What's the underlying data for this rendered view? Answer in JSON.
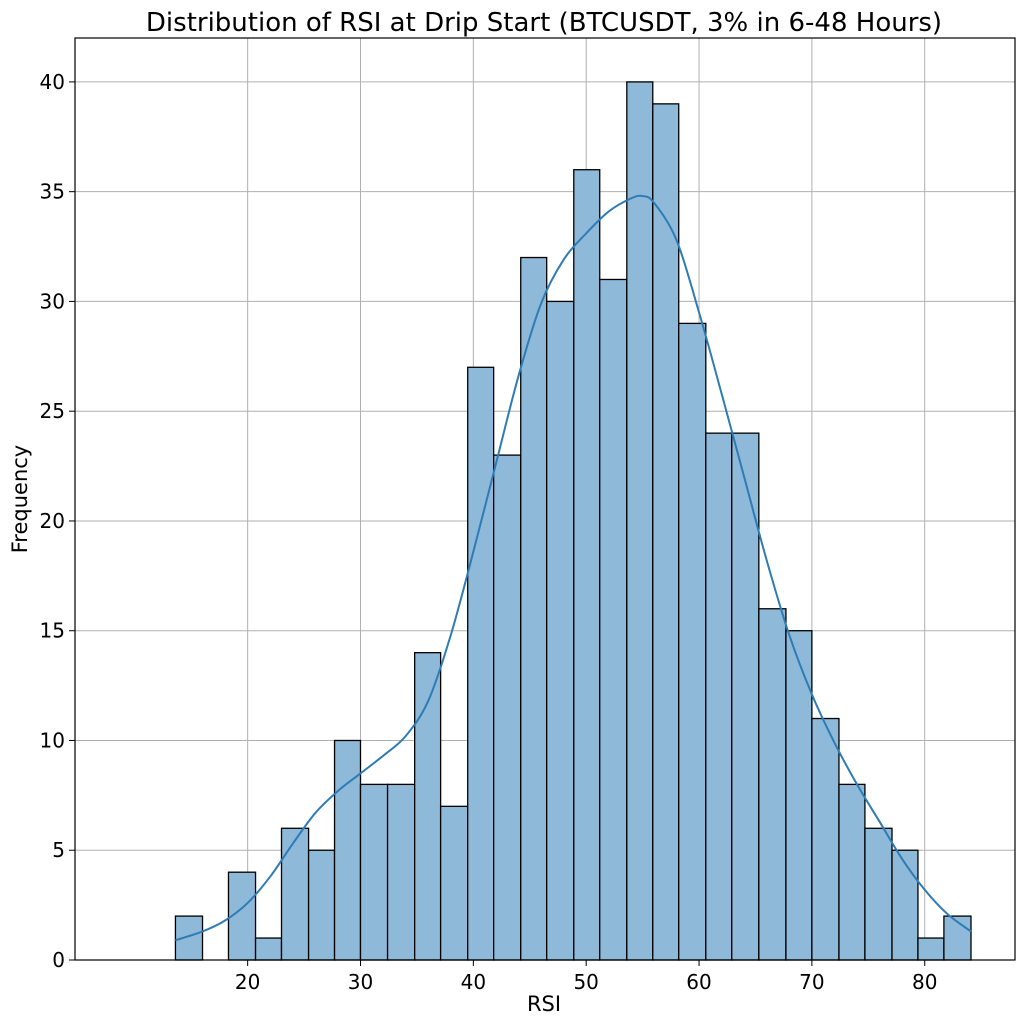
{
  "chart_data": {
    "type": "bar",
    "title": "Distribution of RSI at Drip Start (BTCUSDT, 3% in 6-48 Hours)",
    "xlabel": "RSI",
    "ylabel": "Frequency",
    "xlim": [
      4.7,
      88.0
    ],
    "ylim": [
      0,
      42
    ],
    "x_ticks": [
      20,
      30,
      40,
      50,
      60,
      70,
      80
    ],
    "y_ticks": [
      0,
      5,
      10,
      15,
      20,
      25,
      30,
      35,
      40
    ],
    "grid": true,
    "bins": [
      {
        "start": 13.6,
        "end": 16.0,
        "count": 2
      },
      {
        "start": 16.0,
        "end": 18.3,
        "count": 0
      },
      {
        "start": 18.3,
        "end": 20.7,
        "count": 4
      },
      {
        "start": 20.7,
        "end": 23.0,
        "count": 1
      },
      {
        "start": 23.0,
        "end": 25.4,
        "count": 6
      },
      {
        "start": 25.4,
        "end": 27.7,
        "count": 5
      },
      {
        "start": 27.7,
        "end": 30.0,
        "count": 10
      },
      {
        "start": 30.0,
        "end": 32.4,
        "count": 8
      },
      {
        "start": 32.4,
        "end": 34.8,
        "count": 8
      },
      {
        "start": 34.8,
        "end": 37.1,
        "count": 14
      },
      {
        "start": 37.1,
        "end": 39.5,
        "count": 7
      },
      {
        "start": 39.5,
        "end": 41.8,
        "count": 27
      },
      {
        "start": 41.8,
        "end": 44.2,
        "count": 23
      },
      {
        "start": 44.2,
        "end": 46.5,
        "count": 32
      },
      {
        "start": 46.5,
        "end": 48.9,
        "count": 30
      },
      {
        "start": 48.9,
        "end": 51.2,
        "count": 36
      },
      {
        "start": 51.2,
        "end": 53.6,
        "count": 31
      },
      {
        "start": 53.6,
        "end": 55.9,
        "count": 40
      },
      {
        "start": 55.9,
        "end": 58.2,
        "count": 39
      },
      {
        "start": 58.2,
        "end": 60.6,
        "count": 29
      },
      {
        "start": 60.6,
        "end": 62.9,
        "count": 24
      },
      {
        "start": 62.9,
        "end": 65.3,
        "count": 24
      },
      {
        "start": 65.3,
        "end": 67.7,
        "count": 16
      },
      {
        "start": 67.7,
        "end": 70.0,
        "count": 15
      },
      {
        "start": 70.0,
        "end": 72.4,
        "count": 11
      },
      {
        "start": 72.4,
        "end": 74.7,
        "count": 8
      },
      {
        "start": 74.7,
        "end": 77.1,
        "count": 6
      },
      {
        "start": 77.1,
        "end": 79.4,
        "count": 5
      },
      {
        "start": 79.4,
        "end": 81.7,
        "count": 1
      },
      {
        "start": 81.7,
        "end": 84.1,
        "count": 2
      }
    ],
    "kde": {
      "x": [
        13.6,
        16,
        18,
        20,
        22,
        24,
        26,
        28,
        30,
        32,
        34,
        36,
        38,
        40,
        42,
        44,
        46,
        48,
        50,
        52,
        54,
        55,
        56,
        58,
        60,
        62,
        64,
        66,
        68,
        70,
        72,
        74,
        76,
        78,
        80,
        82,
        84.1
      ],
      "y": [
        0.9,
        1.3,
        1.8,
        2.6,
        3.8,
        5.3,
        6.7,
        7.7,
        8.5,
        9.3,
        10.2,
        11.8,
        14.8,
        18.6,
        22.6,
        26.6,
        29.9,
        31.9,
        33.1,
        34.1,
        34.7,
        34.8,
        34.5,
        32.8,
        29.5,
        25.8,
        22.0,
        18.2,
        14.8,
        12.1,
        9.9,
        8.0,
        6.3,
        4.6,
        3.2,
        2.1,
        1.3
      ]
    },
    "colors": {
      "bar_fill": "#8eb9d9",
      "bar_edge": "#000000",
      "kde_line": "#2e7cb5",
      "grid": "#b0b0b0"
    }
  }
}
